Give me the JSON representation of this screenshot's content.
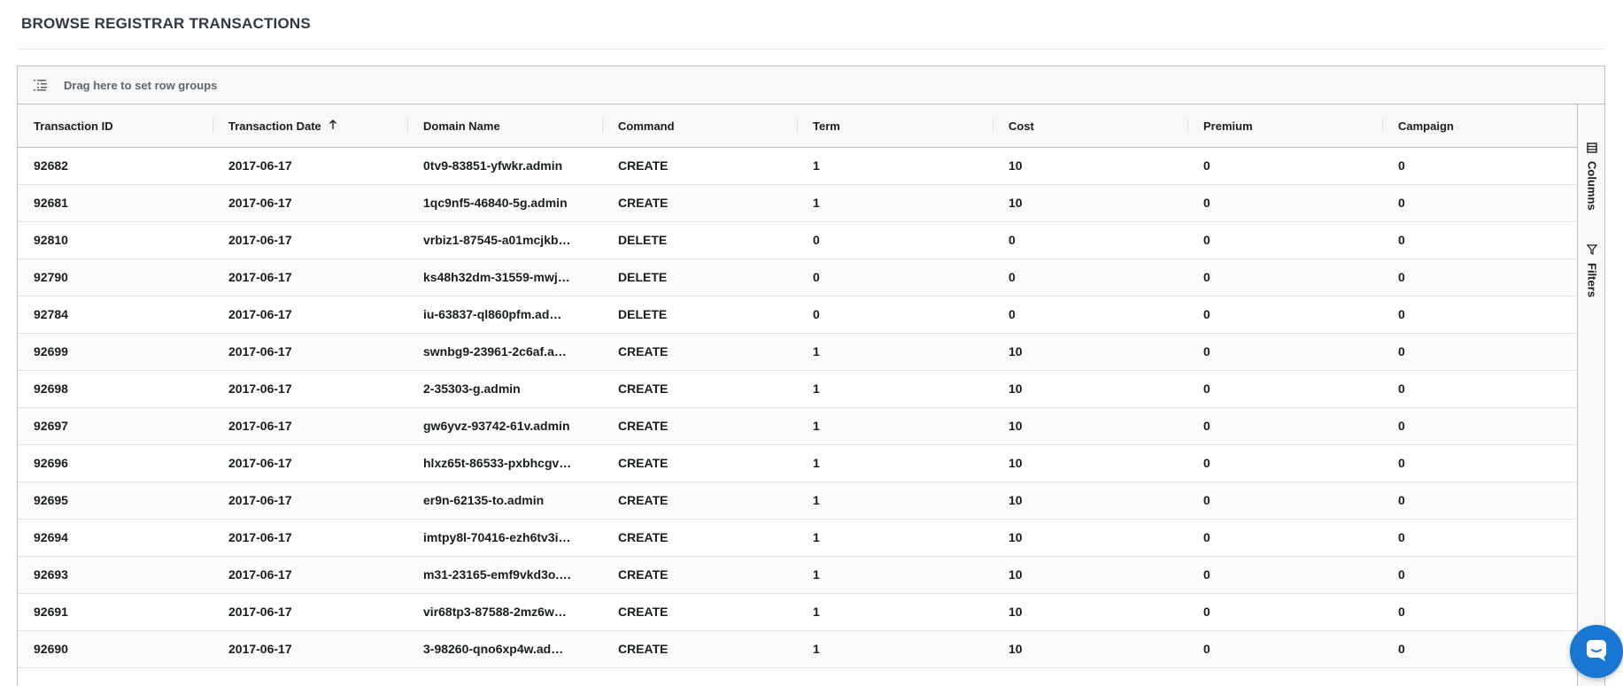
{
  "page": {
    "title": "BROWSE REGISTRAR TRANSACTIONS"
  },
  "group_panel": {
    "text": "Drag here to set row groups",
    "icon": "row-groups-icon"
  },
  "columns": [
    {
      "key": "transaction_id",
      "label": "Transaction ID"
    },
    {
      "key": "transaction_date",
      "label": "Transaction Date",
      "sort": "ascending"
    },
    {
      "key": "domain_name",
      "label": "Domain Name"
    },
    {
      "key": "command",
      "label": "Command"
    },
    {
      "key": "term",
      "label": "Term"
    },
    {
      "key": "cost",
      "label": "Cost"
    },
    {
      "key": "premium",
      "label": "Premium"
    },
    {
      "key": "campaign",
      "label": "Campaign"
    }
  ],
  "rows": [
    [
      "92682",
      "2017-06-17",
      "0tv9-83851-yfwkr.admin",
      "CREATE",
      "1",
      "10",
      "0",
      "0"
    ],
    [
      "92681",
      "2017-06-17",
      "1qc9nf5-46840-5g.admin",
      "CREATE",
      "1",
      "10",
      "0",
      "0"
    ],
    [
      "92810",
      "2017-06-17",
      "vrbiz1-87545-a01mcjkb…",
      "DELETE",
      "0",
      "0",
      "0",
      "0"
    ],
    [
      "92790",
      "2017-06-17",
      "ks48h32dm-31559-mwj…",
      "DELETE",
      "0",
      "0",
      "0",
      "0"
    ],
    [
      "92784",
      "2017-06-17",
      "iu-63837-ql860pfm.ad…",
      "DELETE",
      "0",
      "0",
      "0",
      "0"
    ],
    [
      "92699",
      "2017-06-17",
      "swnbg9-23961-2c6af.a…",
      "CREATE",
      "1",
      "10",
      "0",
      "0"
    ],
    [
      "92698",
      "2017-06-17",
      "2-35303-g.admin",
      "CREATE",
      "1",
      "10",
      "0",
      "0"
    ],
    [
      "92697",
      "2017-06-17",
      "gw6yvz-93742-61v.admin",
      "CREATE",
      "1",
      "10",
      "0",
      "0"
    ],
    [
      "92696",
      "2017-06-17",
      "hlxz65t-86533-pxbhcgv…",
      "CREATE",
      "1",
      "10",
      "0",
      "0"
    ],
    [
      "92695",
      "2017-06-17",
      "er9n-62135-to.admin",
      "CREATE",
      "1",
      "10",
      "0",
      "0"
    ],
    [
      "92694",
      "2017-06-17",
      "imtpy8l-70416-ezh6tv3i…",
      "CREATE",
      "1",
      "10",
      "0",
      "0"
    ],
    [
      "92693",
      "2017-06-17",
      "m31-23165-emf9vkd3o.…",
      "CREATE",
      "1",
      "10",
      "0",
      "0"
    ],
    [
      "92691",
      "2017-06-17",
      "vir68tp3-87588-2mz6w…",
      "CREATE",
      "1",
      "10",
      "0",
      "0"
    ],
    [
      "92690",
      "2017-06-17",
      "3-98260-qno6xp4w.ad…",
      "CREATE",
      "1",
      "10",
      "0",
      "0"
    ]
  ],
  "side_bar": {
    "columns_label": "Columns",
    "filters_label": "Filters"
  },
  "colors": {
    "accent": "#1976d2",
    "border": "#babfc7",
    "header_bg": "#f8f8f8"
  }
}
